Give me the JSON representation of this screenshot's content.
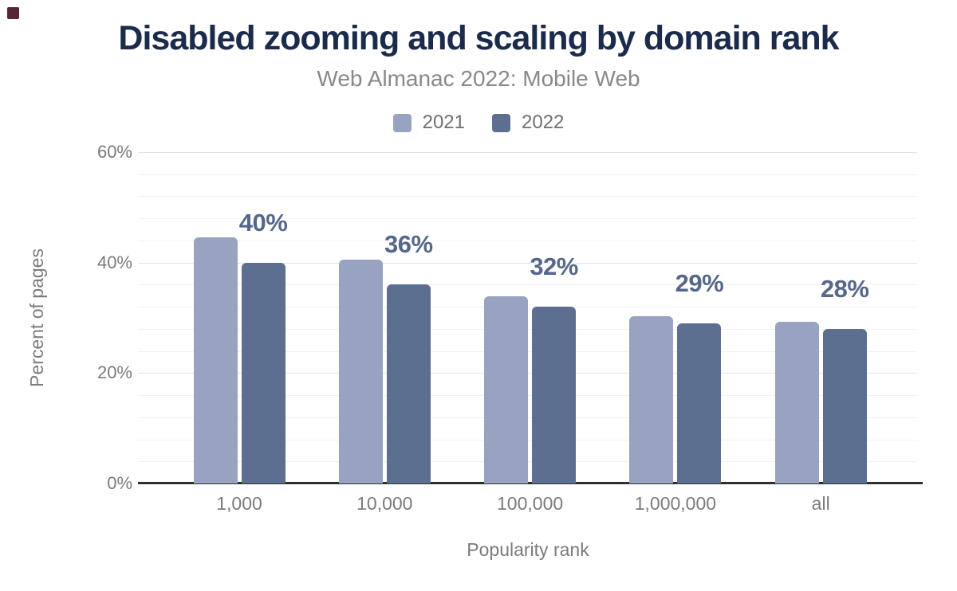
{
  "corner_marker": {
    "color": "#562733"
  },
  "chart_data": {
    "type": "bar",
    "title": "Disabled zooming and scaling by domain rank",
    "subtitle": "Web Almanac 2022: Mobile Web",
    "xlabel": "Popularity rank",
    "ylabel": "Percent of pages",
    "categories": [
      "1,000",
      "10,000",
      "100,000",
      "1,000,000",
      "all"
    ],
    "series": [
      {
        "name": "2021",
        "color": "#97a3c0",
        "values": [
          44.6,
          40.5,
          33.9,
          30.3,
          29.3
        ]
      },
      {
        "name": "2022",
        "color": "#5d6f90",
        "values": [
          40,
          36,
          32,
          29,
          28
        ],
        "data_labels": [
          "40%",
          "36%",
          "32%",
          "29%",
          "28%"
        ]
      }
    ],
    "ylim": [
      0,
      60
    ],
    "yticks": [
      {
        "v": 0,
        "label": "0%"
      },
      {
        "v": 20,
        "label": "20%"
      },
      {
        "v": 40,
        "label": "40%"
      },
      {
        "v": 60,
        "label": "60%"
      }
    ],
    "minor_grid_step_pct": 4,
    "grid": true,
    "legend_position": "top",
    "colors": {
      "title": "#1b2b4b",
      "subtitle": "#86898d",
      "axis_text": "#797b7e",
      "legend_text": "#6e7174",
      "data_label": "#55678a",
      "axis_line": "#2e2e2e",
      "gridline_minor": "#f1f1f1",
      "gridline_major": "#e3e3e3",
      "background": "#ffffff"
    }
  }
}
